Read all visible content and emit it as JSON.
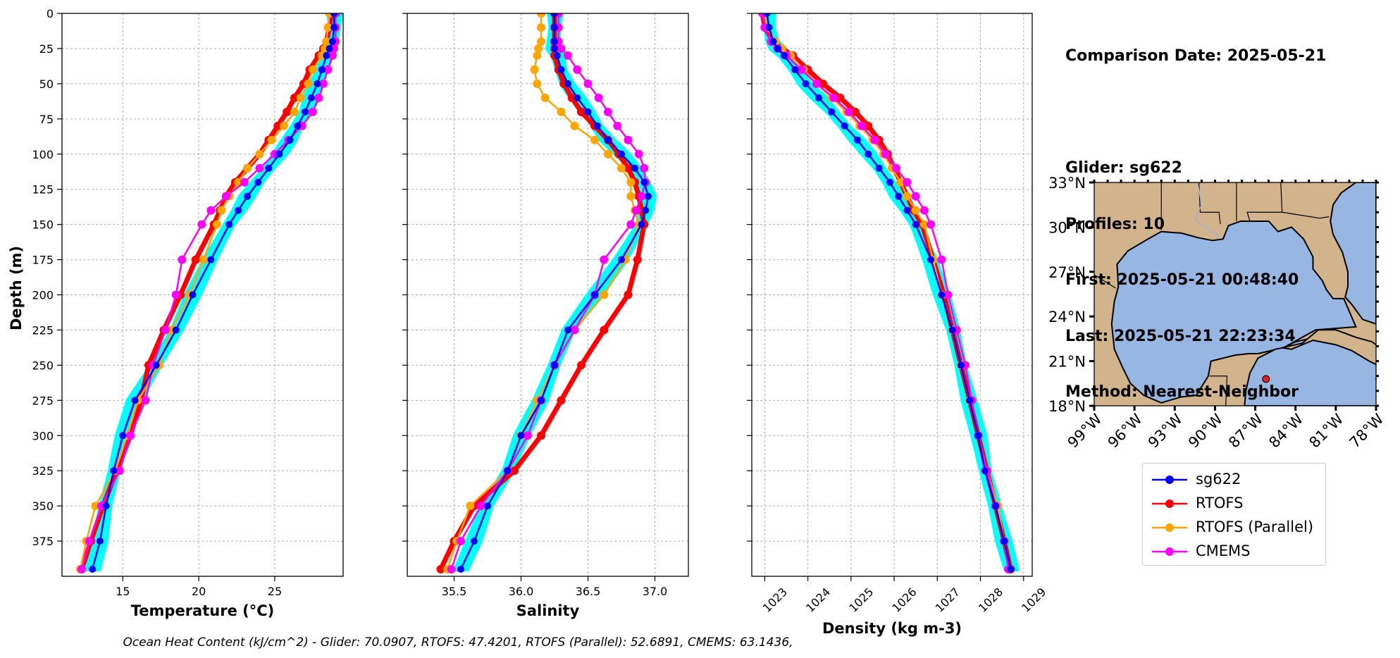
{
  "footer": "Ocean Heat Content (kJ/cm^2) - Glider: 70.0907,  RTOFS: 47.4201,  RTOFS (Parallel): 52.6891,  CMEMS: 63.1436,",
  "info": {
    "date_line": "Comparison Date: 2025-05-21",
    "glider_line": "Glider: sg622",
    "profiles_line": "Profiles: 10",
    "first_line": "First: 2025-05-21 00:48:40",
    "last_line": "Last: 2025-05-21 22:23:34",
    "method_line": "Method: Nearest-Neighbor"
  },
  "legend": [
    {
      "label": "sg622",
      "color": "#0000ff"
    },
    {
      "label": "RTOFS",
      "color": "#ff0000"
    },
    {
      "label": "RTOFS (Parallel)",
      "color": "#ffa500"
    },
    {
      "label": "CMEMS",
      "color": "#ff00ff"
    }
  ],
  "colors": {
    "glider_cloud": "#00ffff",
    "land": "#d2b48c",
    "ocean": "#97b6e1"
  },
  "map": {
    "lat_labels": [
      "33°N",
      "30°N",
      "27°N",
      "24°N",
      "21°N",
      "18°N"
    ],
    "lat_values": [
      33,
      30,
      27,
      24,
      21,
      18
    ],
    "lon_labels": [
      "99°W",
      "96°W",
      "93°W",
      "90°W",
      "87°W",
      "84°W",
      "81°W",
      "78°W"
    ],
    "lon_values": [
      -99,
      -96,
      -93,
      -90,
      -87,
      -84,
      -81,
      -78
    ],
    "glider_position": {
      "lon": -86.2,
      "lat": 19.8
    }
  },
  "chart_data": [
    {
      "type": "line",
      "xlabel": "Temperature (°C)",
      "ylabel": "Depth (m)",
      "xlim": [
        11,
        29.5
      ],
      "ylim": [
        400,
        0
      ],
      "xticks": [
        15,
        20,
        25
      ],
      "yticks": [
        0,
        25,
        50,
        75,
        100,
        125,
        150,
        175,
        200,
        225,
        250,
        275,
        300,
        325,
        350,
        375
      ],
      "depth": [
        0,
        10,
        20,
        25,
        30,
        40,
        50,
        60,
        70,
        80,
        90,
        100,
        110,
        120,
        130,
        140,
        150,
        175,
        200,
        225,
        250,
        275,
        300,
        325,
        350,
        375,
        395
      ],
      "series": [
        {
          "name": "sg622",
          "values": [
            28.9,
            28.9,
            28.8,
            28.6,
            28.4,
            28.1,
            27.8,
            27.4,
            27.0,
            26.5,
            26.0,
            25.3,
            24.6,
            23.9,
            23.2,
            22.6,
            22.0,
            20.8,
            19.6,
            18.5,
            17.2,
            15.8,
            15.0,
            14.4,
            13.9,
            13.5,
            13.0
          ]
        },
        {
          "name": "RTOFS",
          "values": [
            28.7,
            28.6,
            28.4,
            28.2,
            27.9,
            27.3,
            26.9,
            26.3,
            25.8,
            25.2,
            24.6,
            24.0,
            23.2,
            22.4,
            21.8,
            21.4,
            21.0,
            19.8,
            18.8,
            17.7,
            16.7,
            16.2,
            15.5,
            14.6,
            13.7,
            12.9,
            12.3
          ]
        },
        {
          "name": "RTOFS (Parallel)",
          "values": [
            28.6,
            28.5,
            28.4,
            28.3,
            28.1,
            27.5,
            27.2,
            26.7,
            26.3,
            25.6,
            24.8,
            24.0,
            23.2,
            22.6,
            22.0,
            21.5,
            21.2,
            20.3,
            19.4,
            18.2,
            17.4,
            16.0,
            15.3,
            14.5,
            13.2,
            12.6,
            12.2
          ]
        },
        {
          "name": "CMEMS",
          "values": [
            29.0,
            29.0,
            29.0,
            28.9,
            28.8,
            28.5,
            28.2,
            27.9,
            27.5,
            26.8,
            25.9,
            25.0,
            24.0,
            23.0,
            21.8,
            20.8,
            20.2,
            18.9,
            18.5,
            17.8,
            17.0,
            16.5,
            15.5,
            14.8,
            13.6,
            12.8,
            12.3
          ]
        }
      ]
    },
    {
      "type": "line",
      "xlabel": "Salinity",
      "xlim": [
        35.15,
        37.25
      ],
      "ylim": [
        400,
        0
      ],
      "xticks": [
        35.5,
        36.0,
        36.5,
        37.0
      ],
      "depth": [
        0,
        10,
        20,
        25,
        30,
        40,
        50,
        60,
        70,
        80,
        90,
        100,
        110,
        120,
        130,
        140,
        150,
        175,
        200,
        225,
        250,
        275,
        300,
        325,
        350,
        375,
        395
      ],
      "series": [
        {
          "name": "sg622",
          "values": [
            36.25,
            36.25,
            36.25,
            36.25,
            36.27,
            36.3,
            36.35,
            36.42,
            36.5,
            36.57,
            36.65,
            36.75,
            36.85,
            36.92,
            36.95,
            36.93,
            36.9,
            36.75,
            36.55,
            36.35,
            36.25,
            36.15,
            36.0,
            35.9,
            35.75,
            35.65,
            35.55
          ]
        },
        {
          "name": "RTOFS",
          "values": [
            36.25,
            36.25,
            36.25,
            36.25,
            36.25,
            36.28,
            36.32,
            36.38,
            36.45,
            36.55,
            36.65,
            36.73,
            36.8,
            36.85,
            36.88,
            36.9,
            36.92,
            36.87,
            36.8,
            36.62,
            36.45,
            36.3,
            36.15,
            35.95,
            35.65,
            35.5,
            35.4
          ]
        },
        {
          "name": "RTOFS (Parallel)",
          "values": [
            36.15,
            36.15,
            36.15,
            36.13,
            36.12,
            36.1,
            36.12,
            36.18,
            36.3,
            36.4,
            36.55,
            36.65,
            36.75,
            36.82,
            36.82,
            36.85,
            36.88,
            36.78,
            36.62,
            36.4,
            36.25,
            36.12,
            36.0,
            35.9,
            35.62,
            35.52,
            35.45
          ]
        },
        {
          "name": "CMEMS",
          "values": [
            36.28,
            36.28,
            36.28,
            36.3,
            36.35,
            36.42,
            36.5,
            36.58,
            36.65,
            36.72,
            36.8,
            36.88,
            36.92,
            36.93,
            36.9,
            36.86,
            36.82,
            36.62,
            36.55,
            36.4,
            36.25,
            36.15,
            36.05,
            35.9,
            35.7,
            35.55,
            35.48
          ]
        }
      ]
    },
    {
      "type": "line",
      "xlabel": "Density (kg m-3)",
      "xlim": [
        1022.7,
        1029.2
      ],
      "ylim": [
        400,
        0
      ],
      "xticks": [
        1023,
        1024,
        1025,
        1026,
        1027,
        1028,
        1029
      ],
      "depth": [
        0,
        10,
        20,
        25,
        30,
        40,
        50,
        60,
        70,
        80,
        90,
        100,
        110,
        120,
        130,
        140,
        150,
        175,
        200,
        225,
        250,
        275,
        300,
        325,
        350,
        375,
        395
      ],
      "series": [
        {
          "name": "sg622",
          "values": [
            1023.05,
            1023.1,
            1023.2,
            1023.3,
            1023.45,
            1023.7,
            1023.95,
            1024.25,
            1024.55,
            1024.85,
            1025.15,
            1025.4,
            1025.65,
            1025.9,
            1026.1,
            1026.3,
            1026.5,
            1026.85,
            1027.1,
            1027.35,
            1027.55,
            1027.75,
            1027.95,
            1028.1,
            1028.35,
            1028.55,
            1028.7
          ]
        },
        {
          "name": "RTOFS",
          "values": [
            1022.95,
            1023.0,
            1023.2,
            1023.4,
            1023.65,
            1024.0,
            1024.35,
            1024.75,
            1025.1,
            1025.4,
            1025.65,
            1025.85,
            1026.0,
            1026.15,
            1026.3,
            1026.45,
            1026.65,
            1026.9,
            1027.15,
            1027.35,
            1027.55,
            1027.75,
            1027.95,
            1028.15,
            1028.35,
            1028.55,
            1028.7
          ]
        },
        {
          "name": "RTOFS (Parallel)",
          "values": [
            1023.0,
            1023.05,
            1023.25,
            1023.4,
            1023.6,
            1023.9,
            1024.2,
            1024.55,
            1024.9,
            1025.2,
            1025.5,
            1025.75,
            1025.95,
            1026.15,
            1026.3,
            1026.5,
            1026.7,
            1026.9,
            1027.1,
            1027.35,
            1027.55,
            1027.75,
            1027.95,
            1028.15,
            1028.4,
            1028.55,
            1028.65
          ]
        },
        {
          "name": "CMEMS",
          "values": [
            1022.95,
            1023.0,
            1023.15,
            1023.3,
            1023.5,
            1023.85,
            1024.2,
            1024.6,
            1024.95,
            1025.25,
            1025.55,
            1025.8,
            1026.05,
            1026.3,
            1026.5,
            1026.7,
            1026.85,
            1027.1,
            1027.25,
            1027.45,
            1027.65,
            1027.8,
            1027.95,
            1028.15,
            1028.35,
            1028.55,
            1028.65
          ]
        }
      ]
    }
  ]
}
